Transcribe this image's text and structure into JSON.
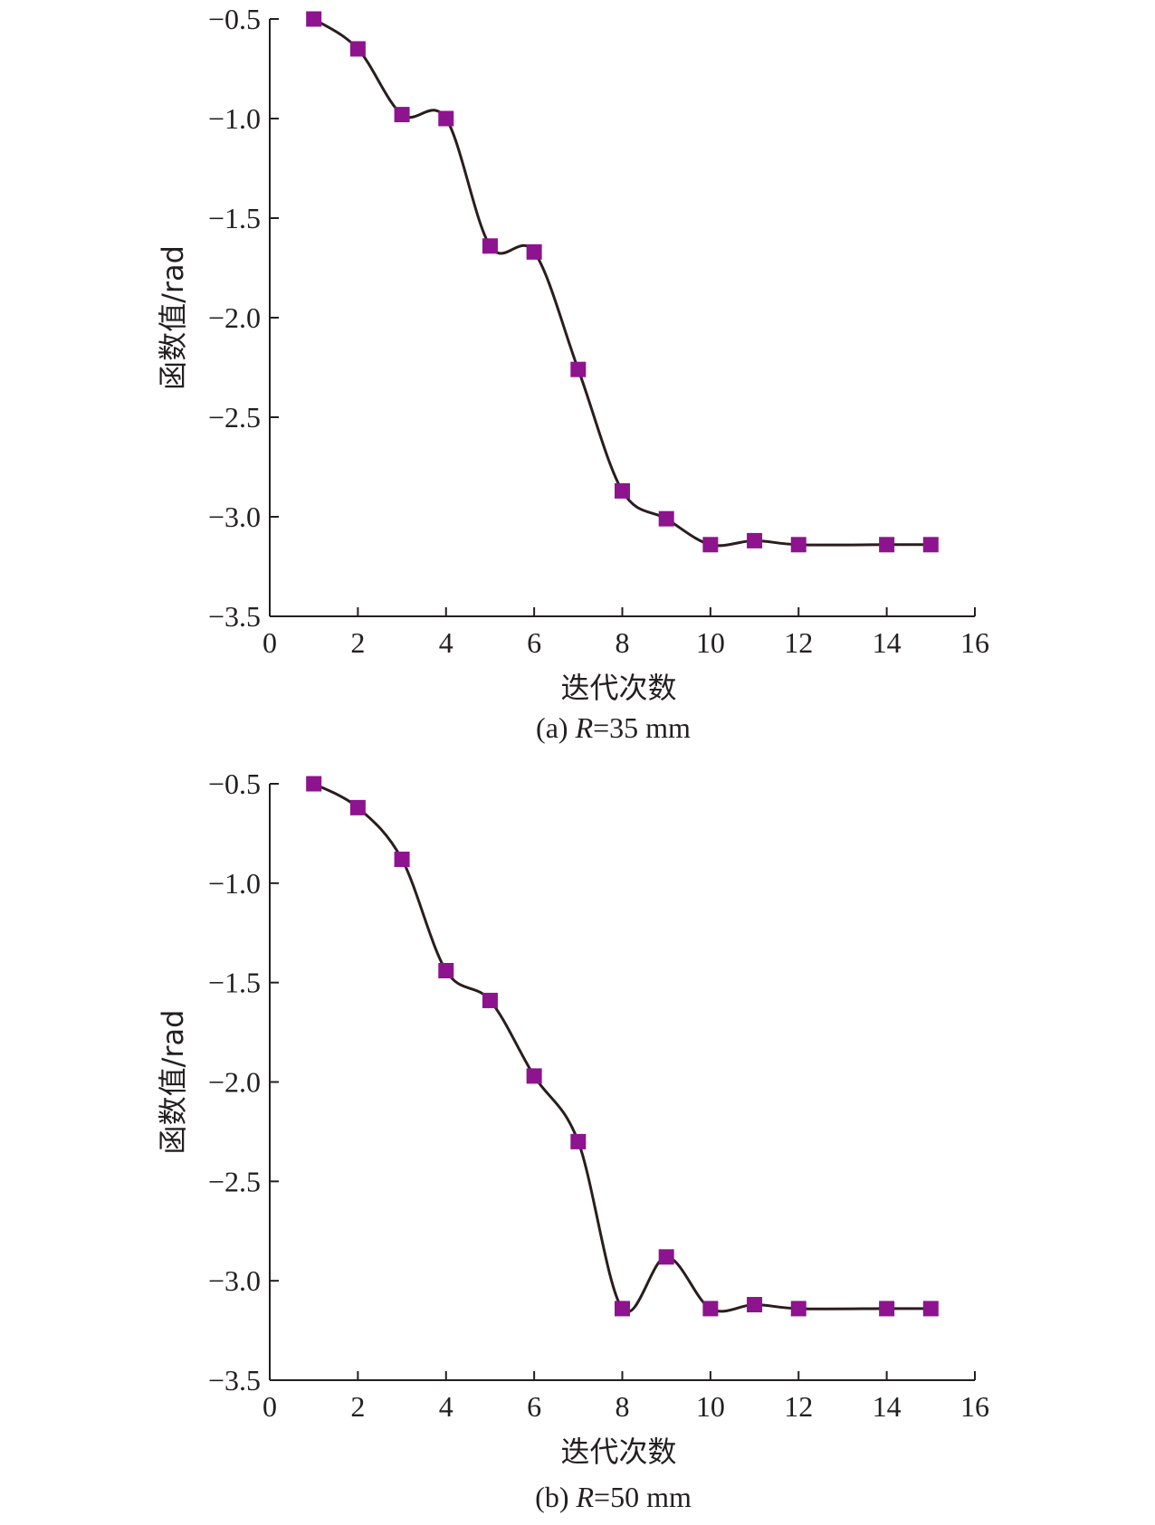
{
  "colors": {
    "marker": "#8e138e",
    "curve": "#2a1d1d",
    "axis": "#231f20"
  },
  "chart_data": [
    {
      "type": "line",
      "caption": "(a) R=35 mm",
      "caption_parts": {
        "prefix": "(a) ",
        "italic": "R",
        "suffix": "=35 mm"
      },
      "xlabel": "迭代次数",
      "ylabel": "函数值/rad",
      "xlim": [
        0,
        16
      ],
      "ylim": [
        -3.5,
        -0.5
      ],
      "xticks": [
        "0",
        "2",
        "4",
        "6",
        "8",
        "10",
        "12",
        "14",
        "16"
      ],
      "yticks": [
        "−0.5",
        "−1.0",
        "−1.5",
        "−2.0",
        "−2.5",
        "−3.0",
        "−3.5"
      ],
      "x": [
        1,
        2,
        3,
        4,
        5,
        6,
        7,
        8,
        9,
        10,
        11,
        12,
        14,
        15
      ],
      "y": [
        -0.5,
        -0.65,
        -0.98,
        -1.0,
        -1.64,
        -1.67,
        -2.26,
        -2.87,
        -3.01,
        -3.14,
        -3.12,
        -3.14,
        -3.14,
        -3.14
      ],
      "marker": "square",
      "grid": false,
      "legend": "none"
    },
    {
      "type": "line",
      "caption": "(b) R=50 mm",
      "caption_parts": {
        "prefix": "(b) ",
        "italic": "R",
        "suffix": "=50 mm"
      },
      "xlabel": "迭代次数",
      "ylabel": "函数值/rad",
      "xlim": [
        0,
        16
      ],
      "ylim": [
        -3.5,
        -0.5
      ],
      "xticks": [
        "0",
        "2",
        "4",
        "6",
        "8",
        "10",
        "12",
        "14",
        "16"
      ],
      "yticks": [
        "−0.5",
        "−1.0",
        "−1.5",
        "−2.0",
        "−2.5",
        "−3.0",
        "−3.5"
      ],
      "x": [
        1,
        2,
        3,
        4,
        5,
        6,
        7,
        8,
        9,
        10,
        11,
        12,
        14,
        15
      ],
      "y": [
        -0.5,
        -0.62,
        -0.88,
        -1.44,
        -1.59,
        -1.97,
        -2.3,
        -3.14,
        -2.88,
        -3.14,
        -3.12,
        -3.14,
        -3.14,
        -3.14
      ],
      "marker": "square",
      "grid": false,
      "legend": "none"
    }
  ]
}
